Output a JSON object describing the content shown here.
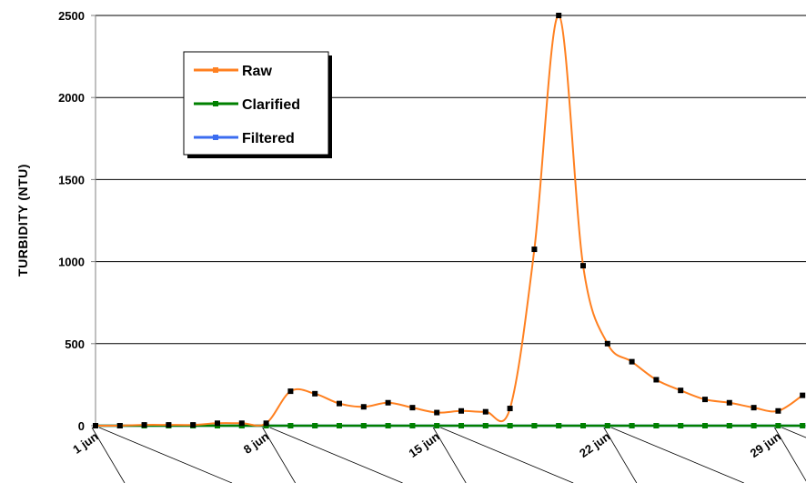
{
  "chart_data": {
    "type": "line",
    "title": "",
    "xlabel": "",
    "ylabel": "TURBIDITY  (NTU)",
    "ylim": [
      0,
      2500
    ],
    "yticks": [
      0,
      500,
      1000,
      1500,
      2000,
      2500
    ],
    "grid": true,
    "legend_position": "top-left",
    "x_tick_labels": [
      {
        "day": 1,
        "label": "1 jun"
      },
      {
        "day": 8,
        "label": "8 jun"
      },
      {
        "day": 15,
        "label": "15 jun"
      },
      {
        "day": 22,
        "label": "22 jun"
      },
      {
        "day": 29,
        "label": "29 jun"
      }
    ],
    "x": [
      1,
      2,
      3,
      4,
      5,
      6,
      7,
      8,
      9,
      10,
      11,
      12,
      13,
      14,
      15,
      16,
      17,
      18,
      19,
      20,
      21,
      22,
      23,
      24,
      25,
      26,
      27,
      28,
      29,
      30
    ],
    "series": [
      {
        "name": "Raw",
        "color": "#ff8020",
        "values": [
          0,
          0,
          5,
          5,
          5,
          15,
          15,
          15,
          210,
          195,
          135,
          115,
          140,
          110,
          80,
          90,
          85,
          105,
          1075,
          2500,
          975,
          500,
          390,
          280,
          215,
          160,
          140,
          110,
          90,
          185
        ]
      },
      {
        "name": "Clarified",
        "color": "#008000",
        "values": [
          0,
          0,
          0,
          0,
          0,
          0,
          0,
          0,
          0,
          0,
          0,
          0,
          0,
          0,
          0,
          0,
          0,
          0,
          0,
          0,
          0,
          0,
          0,
          0,
          0,
          0,
          0,
          0,
          0,
          0
        ]
      },
      {
        "name": "Filtered",
        "color": "#3b6cf0",
        "values": [
          0,
          0,
          0,
          0,
          0,
          0,
          0,
          0,
          0,
          0,
          0,
          0,
          0,
          0,
          0,
          0,
          0,
          0,
          0,
          0,
          0,
          0,
          0,
          0,
          0,
          0,
          0,
          0,
          0,
          0
        ]
      }
    ]
  }
}
